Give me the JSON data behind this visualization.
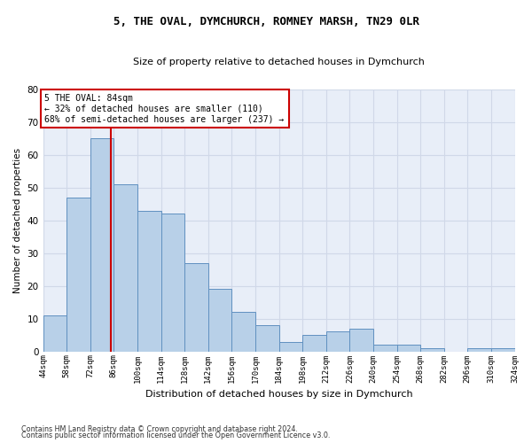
{
  "title1": "5, THE OVAL, DYMCHURCH, ROMNEY MARSH, TN29 0LR",
  "title2": "Size of property relative to detached houses in Dymchurch",
  "xlabel": "Distribution of detached houses by size in Dymchurch",
  "ylabel": "Number of detached properties",
  "bar_values": [
    11,
    47,
    65,
    51,
    43,
    42,
    27,
    19,
    12,
    8,
    3,
    5,
    6,
    7,
    2,
    2,
    1,
    0,
    1,
    1
  ],
  "bin_edges": [
    44,
    58,
    72,
    86,
    100,
    114,
    128,
    142,
    156,
    170,
    184,
    198,
    212,
    226,
    240,
    254,
    268,
    282,
    296,
    310,
    324
  ],
  "x_tick_labels": [
    "44sqm",
    "58sqm",
    "72sqm",
    "86sqm",
    "100sqm",
    "114sqm",
    "128sqm",
    "142sqm",
    "156sqm",
    "170sqm",
    "184sqm",
    "198sqm",
    "212sqm",
    "226sqm",
    "240sqm",
    "254sqm",
    "268sqm",
    "282sqm",
    "296sqm",
    "310sqm",
    "324sqm"
  ],
  "bar_color": "#b8d0e8",
  "bar_edge_color": "#6090c0",
  "grid_color": "#d0d8e8",
  "vline_x": 84,
  "vline_color": "#cc0000",
  "annotation_text": "5 THE OVAL: 84sqm\n← 32% of detached houses are smaller (110)\n68% of semi-detached houses are larger (237) →",
  "annotation_box_color": "#ffffff",
  "annotation_box_edge": "#cc0000",
  "ylim": [
    0,
    80
  ],
  "yticks": [
    0,
    10,
    20,
    30,
    40,
    50,
    60,
    70,
    80
  ],
  "footer1": "Contains HM Land Registry data © Crown copyright and database right 2024.",
  "footer2": "Contains public sector information licensed under the Open Government Licence v3.0.",
  "bg_color": "#e8eef8"
}
